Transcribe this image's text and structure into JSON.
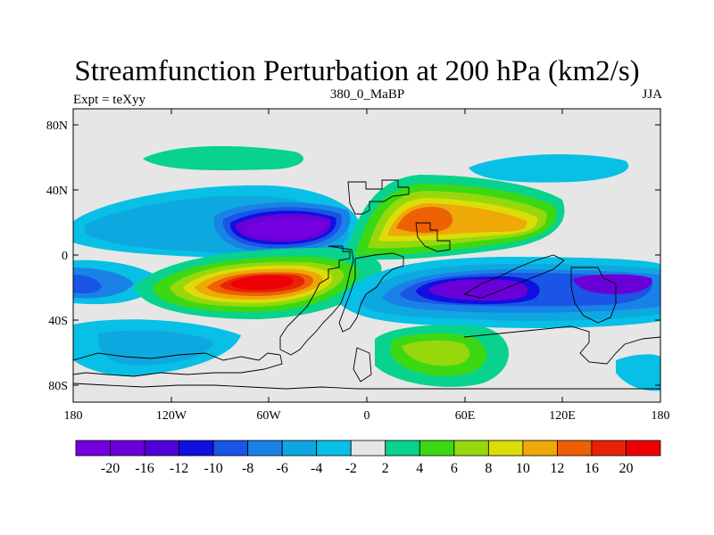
{
  "title": "Streamfunction Perturbation at 200 hPa (km2/s)",
  "left_string": "Expt = teXyy",
  "center_string": "380_0_MaBP",
  "right_string": "JJA",
  "lat_labels": [
    "80N",
    "40N",
    "0",
    "40S",
    "80S"
  ],
  "lon_labels": [
    "180",
    "120W",
    "60W",
    "0",
    "60E",
    "120E",
    "180"
  ],
  "colorbar": {
    "labels": [
      "-20",
      "-16",
      "-12",
      "-10",
      "-8",
      "-6",
      "-4",
      "-2",
      "2",
      "4",
      "6",
      "8",
      "10",
      "12",
      "16",
      "20"
    ],
    "colors": [
      "#7400e0",
      "#6a00d8",
      "#5000d6",
      "#1010e0",
      "#1a55e6",
      "#1a82e6",
      "#0ea8e0",
      "#08c0e6",
      "#e6e6e6",
      "#08d28c",
      "#3cd814",
      "#96d80c",
      "#dcdc08",
      "#eea808",
      "#ee6004",
      "#e82208",
      "#ec0006"
    ]
  },
  "colors": {
    "background_field": "#e6e6e6",
    "coastline": "#000000"
  }
}
